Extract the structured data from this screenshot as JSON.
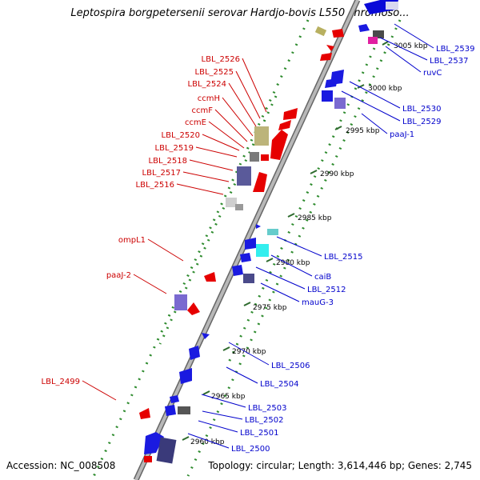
{
  "title": "Leptospira borgpetersenii serovar Hardjo-bovis L550 chromoso...",
  "footer": {
    "accession": "Accession: NC_008508",
    "topology": "Topology: circular; Length: 3,614,446 bp; Genes: 2,745"
  },
  "colors": {
    "left_labels": "#cc0000",
    "right_labels": "#0000cc",
    "backbone": "#999999",
    "tick_dots": "#2e8b2e"
  },
  "scale_ticks": [
    "3005 kbp",
    "3000 kbp",
    "2995 kbp",
    "2990 kbp",
    "2985 kbp",
    "2980 kbp",
    "2975 kbp",
    "2970 kbp",
    "2965 kbp",
    "2960 kbp"
  ],
  "left_gene_labels": [
    "LBL_2526",
    "LBL_2525",
    "LBL_2524",
    "ccmH",
    "ccmF",
    "ccmE",
    "LBL_2520",
    "LBL_2519",
    "LBL_2518",
    "LBL_2517",
    "LBL_2516",
    "ompL1",
    "paaJ-2",
    "LBL_2499"
  ],
  "right_gene_labels": [
    "LBL_2539",
    "LBL_2537",
    "ruvC",
    "LBL_2530",
    "LBL_2529",
    "paaJ-1",
    "LBL_2515",
    "caiB",
    "LBL_2512",
    "mauG-3",
    "LBL_2506",
    "LBL_2504",
    "LBL_2503",
    "LBL_2502",
    "LBL_2501",
    "LBL_2500"
  ]
}
